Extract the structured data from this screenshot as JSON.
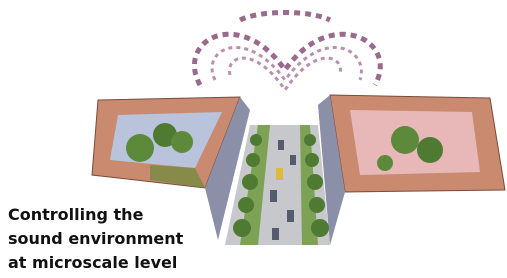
{
  "caption": {
    "lines": [
      "Controlling the",
      "sound environment",
      "at microscale level"
    ]
  }
}
